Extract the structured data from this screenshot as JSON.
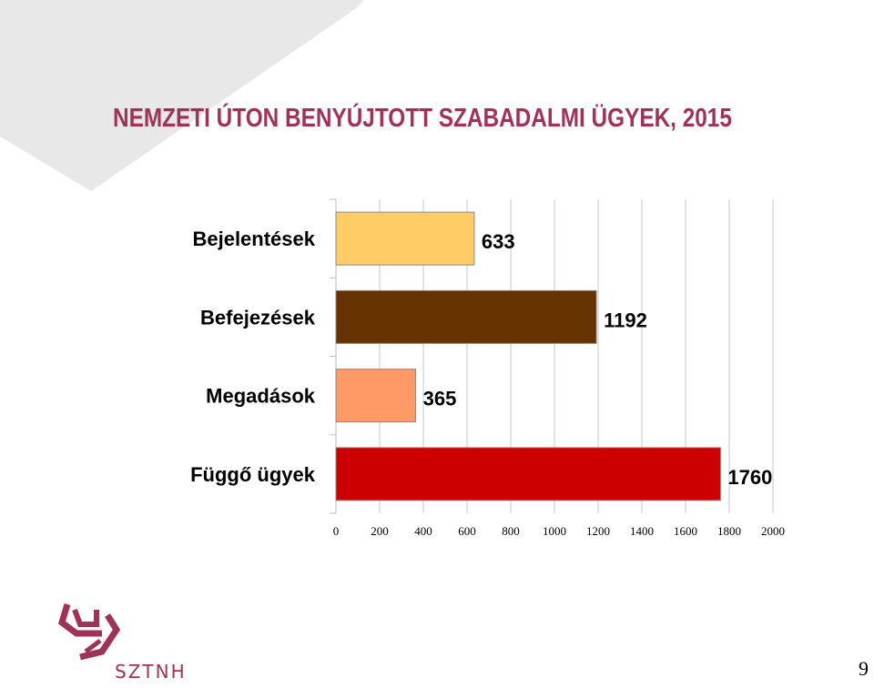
{
  "slide": {
    "title": "NEMZETI ÚTON BENYÚJTOTT SZABADALMI ÜGYEK, 2015",
    "page_number": "9",
    "logo_text": "SZTNH"
  },
  "colors": {
    "title": "#a0325a",
    "logo": "#a0325a",
    "background_shape": "#e8e8e8"
  },
  "chart_data": {
    "type": "bar",
    "orientation": "horizontal",
    "categories": [
      "Bejelentések",
      "Befejezések",
      "Megadások",
      "Függő ügyek"
    ],
    "values": [
      633,
      1192,
      365,
      1760
    ],
    "colors": [
      "#ffcc66",
      "#663300",
      "#ff9966",
      "#cc0000"
    ],
    "xlim": [
      0,
      2000
    ],
    "ticks": [
      0,
      200,
      400,
      600,
      800,
      1000,
      1200,
      1400,
      1600,
      1800,
      2000
    ],
    "grid": true,
    "data_labels": true,
    "title": "",
    "xlabel": "",
    "ylabel": ""
  }
}
